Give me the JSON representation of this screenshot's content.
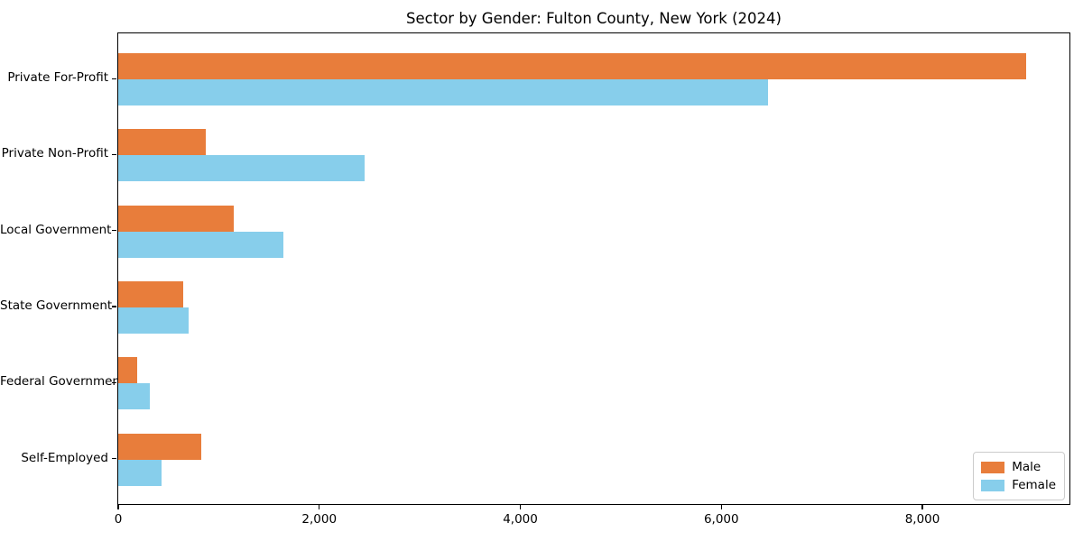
{
  "chart_data": {
    "type": "bar",
    "orientation": "horizontal",
    "title": "Sector by Gender: Fulton County, New York (2024)",
    "categories": [
      "Private For-Profit",
      "Private Non-Profit",
      "Local Government",
      "State Government",
      "Federal Government",
      "Self-Employed"
    ],
    "series": [
      {
        "name": "Male",
        "color": "#e87d3b",
        "values": [
          9030,
          870,
          1150,
          650,
          190,
          830
        ]
      },
      {
        "name": "Female",
        "color": "#87ceeb",
        "values": [
          6460,
          2450,
          1640,
          700,
          310,
          435
        ]
      }
    ],
    "xlabel": "",
    "ylabel": "",
    "xlim": [
      0,
      9481
    ],
    "xticks": [
      {
        "value": 0,
        "label": "0"
      },
      {
        "value": 2000,
        "label": "2,000"
      },
      {
        "value": 4000,
        "label": "4,000"
      },
      {
        "value": 6000,
        "label": "6,000"
      },
      {
        "value": 8000,
        "label": "8,000"
      }
    ],
    "grid": false,
    "legend": {
      "position": "lower right",
      "items": [
        {
          "label": "Male",
          "color": "#e87d3b"
        },
        {
          "label": "Female",
          "color": "#87ceeb"
        }
      ]
    }
  }
}
